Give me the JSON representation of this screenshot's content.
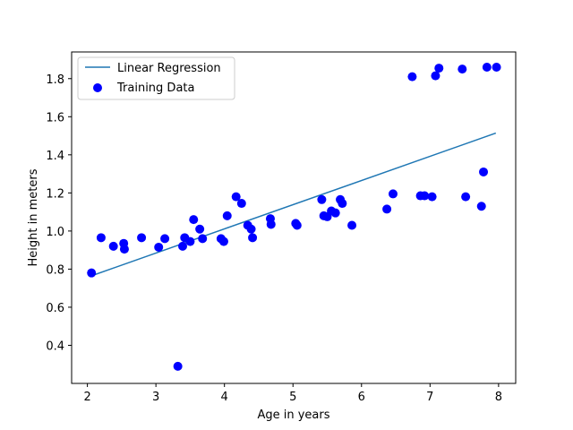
{
  "chart_data": {
    "type": "scatter",
    "xlabel": "Age in years",
    "ylabel": "Height in meters",
    "xlim": [
      1.77,
      8.25
    ],
    "ylim": [
      0.2,
      1.94
    ],
    "xticks": [
      2,
      3,
      4,
      5,
      6,
      7,
      8
    ],
    "yticks": [
      0.4,
      0.6,
      0.8,
      1.0,
      1.2,
      1.4,
      1.6,
      1.8
    ],
    "xtick_labels": [
      "2",
      "3",
      "4",
      "5",
      "6",
      "7",
      "8"
    ],
    "ytick_labels": [
      "0.4",
      "0.6",
      "0.8",
      "1.0",
      "1.2",
      "1.4",
      "1.6",
      "1.8"
    ],
    "grid": false,
    "legend_position": "upper-left",
    "series": [
      {
        "name": "Linear Regression",
        "kind": "line",
        "color": "#1f77b4",
        "x": [
          2.06,
          7.96
        ],
        "y": [
          0.765,
          1.514
        ]
      },
      {
        "name": "Training Data",
        "kind": "scatter",
        "color": "#0000ff",
        "x": [
          2.06,
          2.2,
          2.38,
          2.53,
          2.54,
          2.79,
          3.04,
          3.13,
          3.32,
          3.39,
          3.42,
          3.5,
          3.55,
          3.64,
          3.68,
          3.95,
          3.99,
          4.04,
          4.17,
          4.25,
          4.34,
          4.39,
          4.41,
          4.67,
          4.68,
          5.04,
          5.06,
          5.42,
          5.45,
          5.5,
          5.56,
          5.62,
          5.69,
          5.72,
          5.86,
          6.37,
          6.46,
          6.74,
          6.86,
          6.92,
          7.03,
          7.08,
          7.13,
          7.47,
          7.52,
          7.75,
          7.78,
          7.83,
          7.97
        ],
        "y": [
          0.78,
          0.965,
          0.92,
          0.935,
          0.905,
          0.965,
          0.915,
          0.96,
          0.29,
          0.92,
          0.965,
          0.945,
          1.06,
          1.01,
          0.96,
          0.96,
          0.945,
          1.08,
          1.18,
          1.145,
          1.03,
          1.01,
          0.965,
          1.065,
          1.035,
          1.04,
          1.03,
          1.165,
          1.08,
          1.075,
          1.105,
          1.095,
          1.165,
          1.145,
          1.03,
          1.115,
          1.195,
          1.81,
          1.185,
          1.185,
          1.18,
          1.815,
          1.855,
          1.85,
          1.18,
          1.13,
          1.31,
          1.86,
          1.86
        ]
      }
    ]
  }
}
